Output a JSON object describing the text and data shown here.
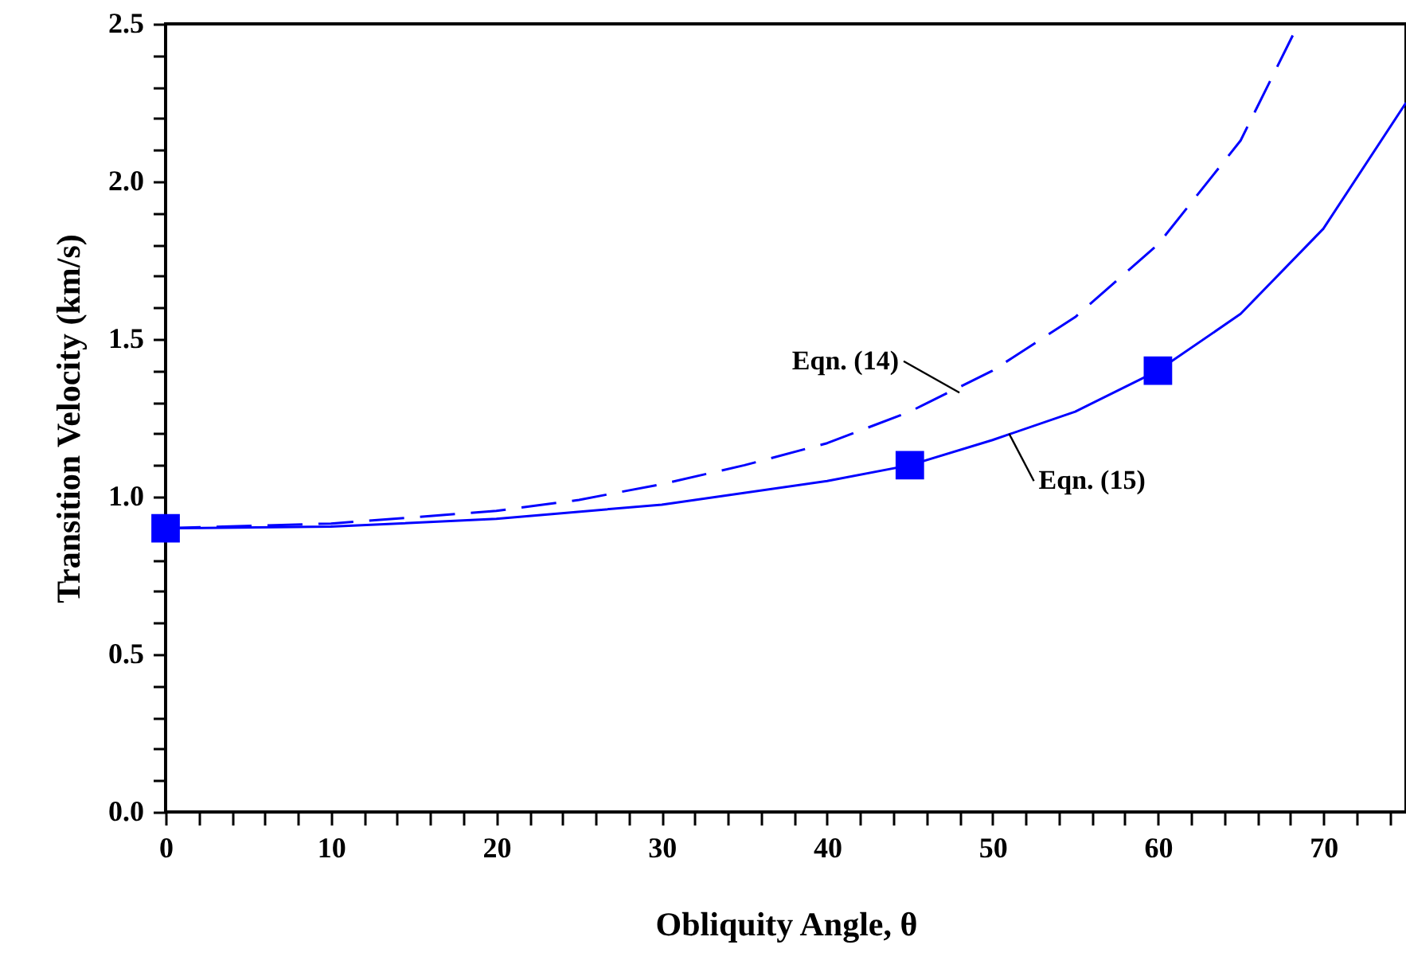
{
  "chart_data": {
    "type": "line",
    "xlabel": "Obliquity Angle, θ",
    "ylabel": "Transition Velocity (km/s)",
    "xlim": [
      0,
      75
    ],
    "ylim": [
      0,
      2.5
    ],
    "xticks": [
      0,
      {
        "value": 2,
        "label": null
      },
      {
        "value": 4,
        "label": null
      },
      {
        "value": 6,
        "label": null
      },
      {
        "value": 8,
        "label": null
      },
      10,
      {
        "value": 12,
        "label": null
      },
      {
        "value": 14,
        "label": null
      },
      {
        "value": 16,
        "label": null
      },
      {
        "value": 18,
        "label": null
      },
      20,
      {
        "value": 22,
        "label": null
      },
      {
        "value": 24,
        "label": null
      },
      {
        "value": 26,
        "label": null
      },
      {
        "value": 28,
        "label": null
      },
      30,
      {
        "value": 32,
        "label": null
      },
      {
        "value": 34,
        "label": null
      },
      {
        "value": 36,
        "label": null
      },
      {
        "value": 38,
        "label": null
      },
      40,
      {
        "value": 42,
        "label": null
      },
      {
        "value": 44,
        "label": null
      },
      {
        "value": 46,
        "label": null
      },
      {
        "value": 48,
        "label": null
      },
      50,
      {
        "value": 52,
        "label": null
      },
      {
        "value": 54,
        "label": null
      },
      {
        "value": 56,
        "label": null
      },
      {
        "value": 58,
        "label": null
      },
      60,
      {
        "value": 62,
        "label": null
      },
      {
        "value": 64,
        "label": null
      },
      {
        "value": 66,
        "label": null
      },
      {
        "value": 68,
        "label": null
      },
      70,
      {
        "value": 72,
        "label": null
      },
      {
        "value": 74,
        "label": null
      }
    ],
    "yticks": [
      {
        "value": 0,
        "label": "0.0"
      },
      {
        "value": 0.1,
        "label": null
      },
      {
        "value": 0.2,
        "label": null
      },
      {
        "value": 0.3,
        "label": null
      },
      {
        "value": 0.4,
        "label": null
      },
      {
        "value": 0.5,
        "label": "0.5"
      },
      {
        "value": 0.6,
        "label": null
      },
      {
        "value": 0.7,
        "label": null
      },
      {
        "value": 0.8,
        "label": null
      },
      {
        "value": 0.9,
        "label": null
      },
      {
        "value": 1,
        "label": "1.0"
      },
      {
        "value": 1.1,
        "label": null
      },
      {
        "value": 1.2,
        "label": null
      },
      {
        "value": 1.3,
        "label": null
      },
      {
        "value": 1.4,
        "label": null
      },
      {
        "value": 1.5,
        "label": "1.5"
      },
      {
        "value": 1.6,
        "label": null
      },
      {
        "value": 1.7,
        "label": null
      },
      {
        "value": 1.8,
        "label": null
      },
      {
        "value": 1.9,
        "label": null
      },
      {
        "value": 2,
        "label": "2.0"
      },
      {
        "value": 2.1,
        "label": null
      },
      {
        "value": 2.2,
        "label": null
      },
      {
        "value": 2.3,
        "label": null
      },
      {
        "value": 2.4,
        "label": null
      },
      {
        "value": 2.5,
        "label": "2.5"
      }
    ],
    "grid": false,
    "series": [
      {
        "line_style": "dashed",
        "color": "#0000ff",
        "x": [
          0,
          10,
          20,
          25,
          30,
          35,
          40,
          45,
          50,
          55,
          60,
          65,
          68.5
        ],
        "values": [
          0.9,
          0.915,
          0.955,
          0.99,
          1.04,
          1.1,
          1.17,
          1.27,
          1.4,
          1.57,
          1.8,
          2.13,
          2.5
        ]
      },
      {
        "line_style": "solid",
        "color": "#0000ff",
        "x": [
          0,
          10,
          20,
          30,
          40,
          45,
          50,
          55,
          60,
          65,
          70,
          75
        ],
        "values": [
          0.9,
          0.905,
          0.93,
          0.975,
          1.05,
          1.1,
          1.18,
          1.27,
          1.4,
          1.58,
          1.85,
          2.25
        ]
      },
      {
        "type": "scatter",
        "marker": "square",
        "color": "#0000ff",
        "x": [
          0,
          45,
          60
        ],
        "values": [
          0.9,
          1.1,
          1.4
        ]
      }
    ],
    "annotations": [
      {
        "text": "Eqn. (14)",
        "x": 48,
        "y": 1.33
      },
      {
        "text": "Eqn. (15)",
        "x": 51,
        "y": 1.2
      }
    ]
  }
}
